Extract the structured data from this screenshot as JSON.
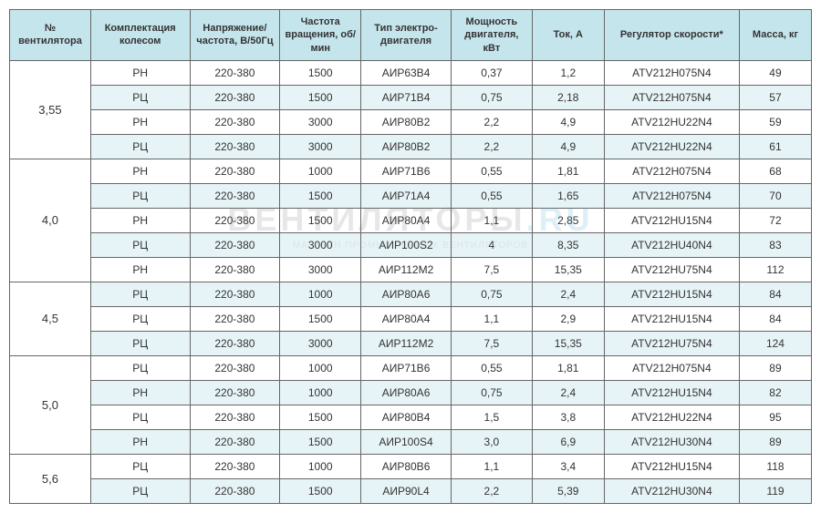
{
  "watermark": {
    "main1": "ВЕНТИЛЯТОРЫ",
    "main2": ".RU",
    "sub": "МАГАЗИН ПРОМЫШЛЕННЫХ ВЕНТИЛЯТОРОВ"
  },
  "headers": [
    "№ вентилятора",
    "Комплектация колесом",
    "Напряжение/ частота, В/50Гц",
    "Частота вращения, об/мин",
    "Тип электро-двигателя",
    "Мощность двигателя, кВт",
    "Ток, А",
    "Регулятор скорости*",
    "Масса, кг"
  ],
  "groups": [
    {
      "id": "3,55",
      "rows": [
        {
          "alt": 0,
          "c": [
            "РН",
            "220-380",
            "1500",
            "АИР63В4",
            "0,37",
            "1,2",
            "ATV212H075N4",
            "49"
          ]
        },
        {
          "alt": 1,
          "c": [
            "РЦ",
            "220-380",
            "1500",
            "АИР71В4",
            "0,75",
            "2,18",
            "ATV212H075N4",
            "57"
          ]
        },
        {
          "alt": 0,
          "c": [
            "РН",
            "220-380",
            "3000",
            "АИР80В2",
            "2,2",
            "4,9",
            "ATV212HU22N4",
            "59"
          ]
        },
        {
          "alt": 1,
          "c": [
            "РЦ",
            "220-380",
            "3000",
            "АИР80В2",
            "2,2",
            "4,9",
            "ATV212HU22N4",
            "61"
          ]
        }
      ]
    },
    {
      "id": "4,0",
      "rows": [
        {
          "alt": 0,
          "c": [
            "РН",
            "220-380",
            "1000",
            "АИР71В6",
            "0,55",
            "1,81",
            "ATV212H075N4",
            "68"
          ]
        },
        {
          "alt": 1,
          "c": [
            "РЦ",
            "220-380",
            "1500",
            "АИР71А4",
            "0,55",
            "1,65",
            "ATV212H075N4",
            "70"
          ]
        },
        {
          "alt": 0,
          "c": [
            "РН",
            "220-380",
            "1500",
            "АИР80А4",
            "1,1",
            "2,85",
            "ATV212HU15N4",
            "72"
          ]
        },
        {
          "alt": 1,
          "c": [
            "РЦ",
            "220-380",
            "3000",
            "АИР100S2",
            "4",
            "8,35",
            "ATV212HU40N4",
            "83"
          ]
        },
        {
          "alt": 0,
          "c": [
            "РН",
            "220-380",
            "3000",
            "АИР112М2",
            "7,5",
            "15,35",
            "ATV212HU75N4",
            "112"
          ]
        }
      ]
    },
    {
      "id": "4,5",
      "rows": [
        {
          "alt": 1,
          "c": [
            "РЦ",
            "220-380",
            "1000",
            "АИР80А6",
            "0,75",
            "2,4",
            "ATV212HU15N4",
            "84"
          ]
        },
        {
          "alt": 0,
          "c": [
            "РЦ",
            "220-380",
            "1500",
            "АИР80А4",
            "1,1",
            "2,9",
            "ATV212HU15N4",
            "84"
          ]
        },
        {
          "alt": 1,
          "c": [
            "РЦ",
            "220-380",
            "3000",
            "АИР112М2",
            "7,5",
            "15,35",
            "ATV212HU75N4",
            "124"
          ]
        }
      ]
    },
    {
      "id": "5,0",
      "rows": [
        {
          "alt": 0,
          "c": [
            "РЦ",
            "220-380",
            "1000",
            "АИР71В6",
            "0,55",
            "1,81",
            "ATV212H075N4",
            "89"
          ]
        },
        {
          "alt": 1,
          "c": [
            "РН",
            "220-380",
            "1000",
            "АИР80А6",
            "0,75",
            "2,4",
            "ATV212HU15N4",
            "82"
          ]
        },
        {
          "alt": 0,
          "c": [
            "РЦ",
            "220-380",
            "1500",
            "АИР80В4",
            "1,5",
            "3,8",
            "ATV212HU22N4",
            "95"
          ]
        },
        {
          "alt": 1,
          "c": [
            "РН",
            "220-380",
            "1500",
            "АИР100S4",
            "3,0",
            "6,9",
            "ATV212HU30N4",
            "89"
          ]
        }
      ]
    },
    {
      "id": "5,6",
      "rows": [
        {
          "alt": 0,
          "c": [
            "РЦ",
            "220-380",
            "1000",
            "АИР80В6",
            "1,1",
            "3,4",
            "ATV212HU15N4",
            "118"
          ]
        },
        {
          "alt": 1,
          "c": [
            "РЦ",
            "220-380",
            "1500",
            "АИР90L4",
            "2,2",
            "5,39",
            "ATV212HU30N4",
            "119"
          ]
        }
      ]
    }
  ]
}
